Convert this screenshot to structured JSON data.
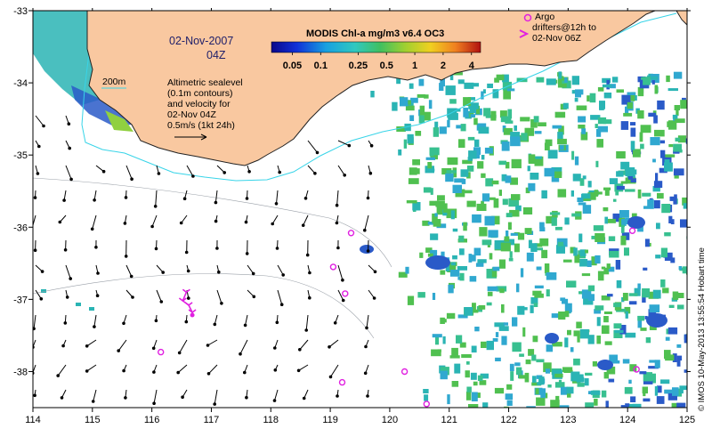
{
  "map": {
    "date": "02-Nov-2007",
    "time": "04Z",
    "colorbar": {
      "title": "MODIS Chl-a mg/m3 v6.4 OC3",
      "tick_labels": [
        "0.05",
        "0.1",
        "0.25",
        "0.5",
        "1",
        "2",
        "4"
      ],
      "tick_values": [
        0.05,
        0.1,
        0.25,
        0.5,
        1,
        2,
        4
      ],
      "range": [
        0.03,
        5
      ],
      "scale": "log"
    },
    "isobath_label": "200m",
    "sealevel_note": {
      "lines": [
        "Altimetric sealevel",
        "(0.1m contours)",
        "and velocity for",
        "02-Nov 04Z",
        "0.5m/s (1kt 24h)"
      ]
    },
    "argo_legend": {
      "lines": [
        "Argo",
        "drifters@12h to",
        "02-Nov 06Z"
      ]
    },
    "credit": "© IMOS 10-May-2013 13:55:54 Hobart time",
    "x_axis": {
      "range": [
        114,
        125
      ],
      "tick_labels": [
        "114",
        "115",
        "116",
        "117",
        "118",
        "119",
        "120",
        "121",
        "122",
        "123",
        "124",
        "125"
      ]
    },
    "y_axis": {
      "range": [
        -38.5,
        -33
      ],
      "tick_labels": [
        "-33",
        "-34",
        "-35",
        "-36",
        "-37",
        "-38"
      ]
    },
    "colors": {
      "land": "#f9c8a0",
      "coastline": "#222222",
      "isobath": "#38d4e8",
      "argo": "#e020e0",
      "arrow": "#000000",
      "chl_low": "#2a5ac8",
      "chl_mid": "#2ab4b4",
      "chl_high": "#50c050"
    },
    "argo_floats": [
      {
        "lon": 119.35,
        "lat": -36.08
      },
      {
        "lon": 119.05,
        "lat": -36.55
      },
      {
        "lon": 119.25,
        "lat": -36.92
      },
      {
        "lon": 116.15,
        "lat": -37.73
      },
      {
        "lon": 119.2,
        "lat": -38.15
      },
      {
        "lon": 120.25,
        "lat": -38.0
      },
      {
        "lon": 120.62,
        "lat": -38.45
      },
      {
        "lon": 124.08,
        "lat": -36.05
      },
      {
        "lon": 124.15,
        "lat": -37.97
      }
    ],
    "drifter_track": [
      {
        "lon": 116.58,
        "lat": -36.9
      },
      {
        "lon": 116.52,
        "lat": -37.02
      },
      {
        "lon": 116.62,
        "lat": -37.08
      },
      {
        "lon": 116.68,
        "lat": -37.18
      }
    ]
  }
}
